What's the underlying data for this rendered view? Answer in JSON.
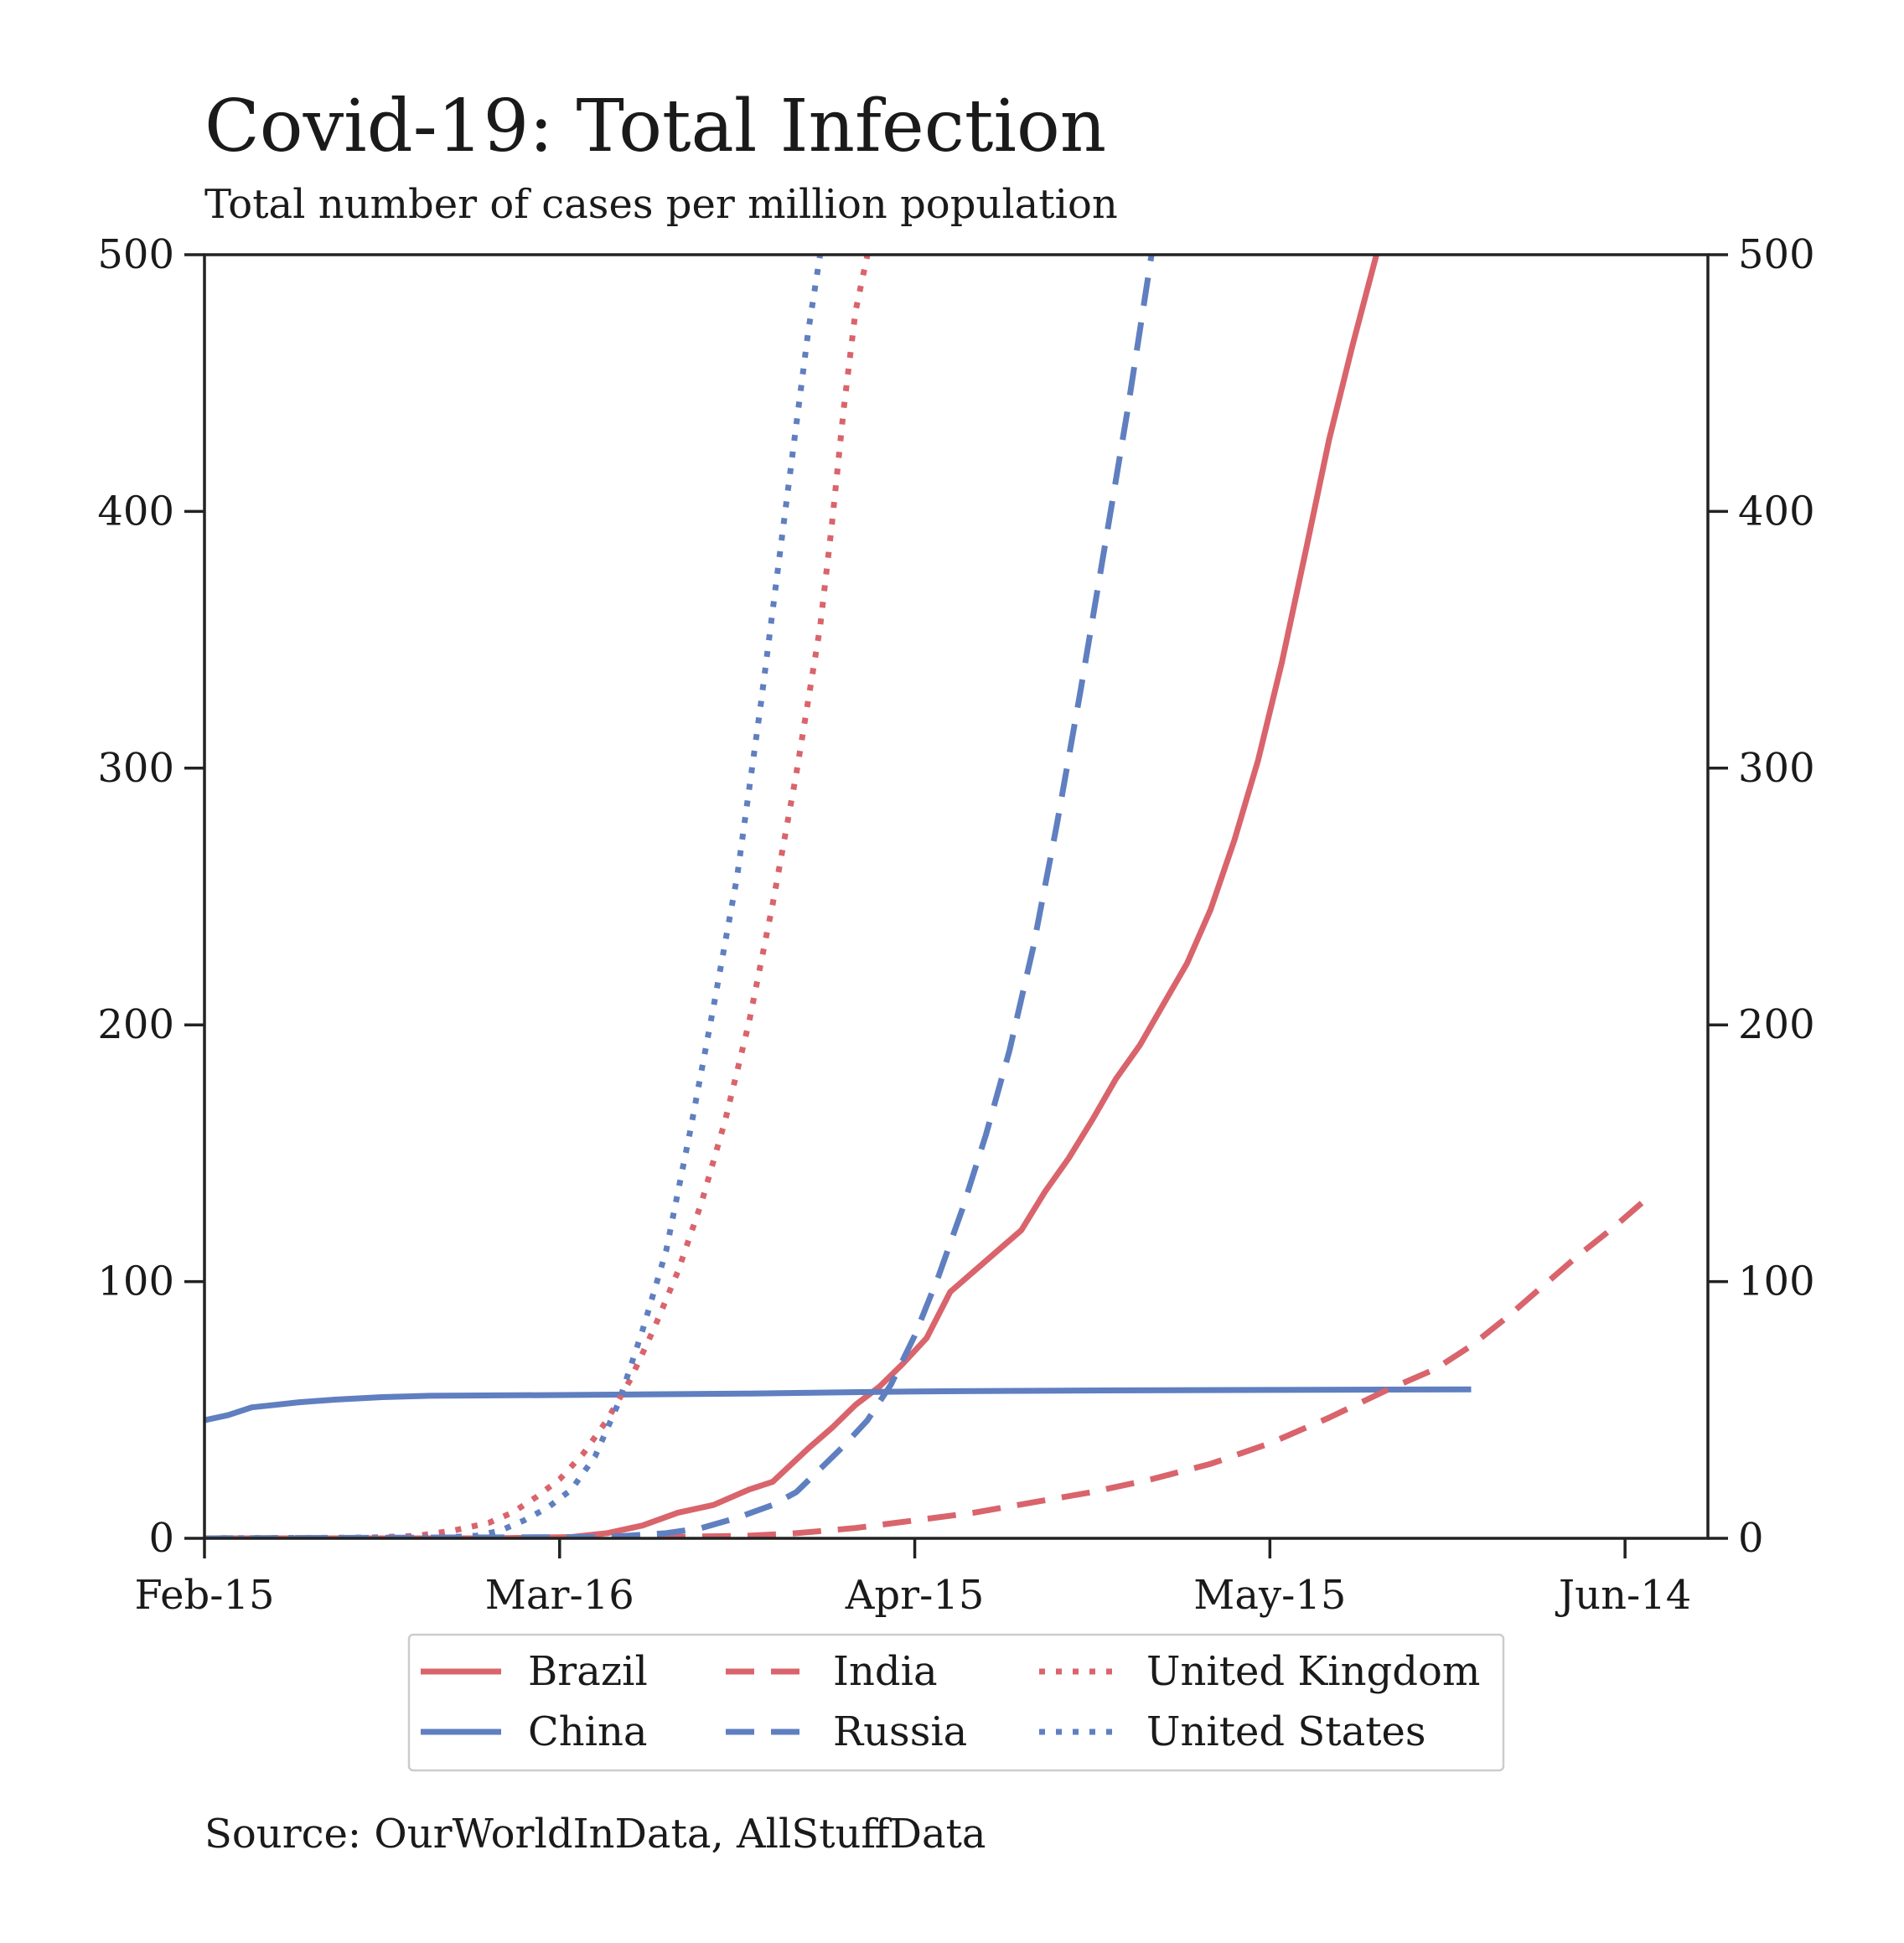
{
  "chart_data": {
    "type": "line",
    "title": "Covid-19: Total Infection",
    "subtitle": "Total number of cases per million population",
    "source": "Source: OurWorldInData, AllStuffData",
    "x_tick_labels": [
      "Feb-15",
      "Mar-16",
      "Apr-15",
      "May-15",
      "Jun-14"
    ],
    "x_tick_dates": [
      "2020-02-15",
      "2020-03-16",
      "2020-04-15",
      "2020-05-15",
      "2020-06-14"
    ],
    "xlim": [
      "2020-02-15",
      "2020-06-21"
    ],
    "ylim": [
      0,
      500
    ],
    "y_ticks": [
      0,
      100,
      200,
      300,
      400,
      500
    ],
    "y_tick_labels": [
      "0",
      "100",
      "200",
      "300",
      "400",
      "500"
    ],
    "secondary_y_axis": true,
    "grid": false,
    "legend_position": "bottom-center",
    "colors": {
      "red": "#d9646c",
      "blue": "#5f7fc0"
    },
    "series": [
      {
        "name": "Brazil",
        "color": "#d9646c",
        "dash": "solid",
        "points": [
          [
            "2020-02-15",
            0
          ],
          [
            "2020-03-10",
            0
          ],
          [
            "2020-03-17",
            0.5
          ],
          [
            "2020-03-20",
            2
          ],
          [
            "2020-03-23",
            5
          ],
          [
            "2020-03-26",
            10
          ],
          [
            "2020-03-29",
            13
          ],
          [
            "2020-04-01",
            19
          ],
          [
            "2020-04-03",
            22
          ],
          [
            "2020-04-06",
            35
          ],
          [
            "2020-04-08",
            43
          ],
          [
            "2020-04-10",
            52
          ],
          [
            "2020-04-12",
            59
          ],
          [
            "2020-04-14",
            68
          ],
          [
            "2020-04-16",
            78
          ],
          [
            "2020-04-18",
            96
          ],
          [
            "2020-04-20",
            104
          ],
          [
            "2020-04-22",
            112
          ],
          [
            "2020-04-24",
            120
          ],
          [
            "2020-04-26",
            135
          ],
          [
            "2020-04-28",
            148
          ],
          [
            "2020-04-30",
            163
          ],
          [
            "2020-05-02",
            179
          ],
          [
            "2020-05-04",
            192
          ],
          [
            "2020-05-06",
            208
          ],
          [
            "2020-05-08",
            224
          ],
          [
            "2020-05-10",
            245
          ],
          [
            "2020-05-12",
            272
          ],
          [
            "2020-05-14",
            303
          ],
          [
            "2020-05-16",
            341
          ],
          [
            "2020-05-18",
            384
          ],
          [
            "2020-05-20",
            428
          ],
          [
            "2020-05-22",
            465
          ],
          [
            "2020-05-24",
            500
          ]
        ]
      },
      {
        "name": "China",
        "color": "#5f7fc0",
        "dash": "solid",
        "points": [
          [
            "2020-02-15",
            46
          ],
          [
            "2020-02-17",
            48
          ],
          [
            "2020-02-19",
            51
          ],
          [
            "2020-02-21",
            52
          ],
          [
            "2020-02-23",
            53
          ],
          [
            "2020-02-26",
            54
          ],
          [
            "2020-03-01",
            55
          ],
          [
            "2020-03-05",
            55.5
          ],
          [
            "2020-03-16",
            55.8
          ],
          [
            "2020-04-01",
            56.4
          ],
          [
            "2020-04-15",
            57.2
          ],
          [
            "2020-05-01",
            57.6
          ],
          [
            "2020-05-15",
            57.8
          ],
          [
            "2020-06-01",
            58
          ]
        ]
      },
      {
        "name": "India",
        "color": "#d9646c",
        "dash": "dashed",
        "points": [
          [
            "2020-02-15",
            0
          ],
          [
            "2020-03-25",
            0.5
          ],
          [
            "2020-04-01",
            1
          ],
          [
            "2020-04-05",
            2
          ],
          [
            "2020-04-10",
            4
          ],
          [
            "2020-04-15",
            7
          ],
          [
            "2020-04-20",
            10
          ],
          [
            "2020-04-25",
            14
          ],
          [
            "2020-04-30",
            18
          ],
          [
            "2020-05-05",
            23
          ],
          [
            "2020-05-10",
            29
          ],
          [
            "2020-05-15",
            37
          ],
          [
            "2020-05-20",
            47
          ],
          [
            "2020-05-25",
            58
          ],
          [
            "2020-05-29",
            66
          ],
          [
            "2020-06-01",
            75
          ],
          [
            "2020-06-04",
            86
          ],
          [
            "2020-06-07",
            98
          ],
          [
            "2020-06-10",
            110
          ],
          [
            "2020-06-13",
            121
          ],
          [
            "2020-06-16",
            133
          ]
        ]
      },
      {
        "name": "Russia",
        "color": "#5f7fc0",
        "dash": "dashed",
        "points": [
          [
            "2020-02-15",
            0
          ],
          [
            "2020-03-20",
            0.5
          ],
          [
            "2020-03-25",
            2
          ],
          [
            "2020-03-28",
            4
          ],
          [
            "2020-03-31",
            8
          ],
          [
            "2020-04-03",
            13
          ],
          [
            "2020-04-05",
            18
          ],
          [
            "2020-04-07",
            27
          ],
          [
            "2020-04-09",
            36
          ],
          [
            "2020-04-11",
            46
          ],
          [
            "2020-04-13",
            60
          ],
          [
            "2020-04-15",
            79
          ],
          [
            "2020-04-17",
            102
          ],
          [
            "2020-04-19",
            128
          ],
          [
            "2020-04-21",
            157
          ],
          [
            "2020-04-23",
            190
          ],
          [
            "2020-04-25",
            230
          ],
          [
            "2020-04-27",
            278
          ],
          [
            "2020-04-29",
            330
          ],
          [
            "2020-05-01",
            385
          ],
          [
            "2020-05-03",
            440
          ],
          [
            "2020-05-05",
            500
          ]
        ]
      },
      {
        "name": "United Kingdom",
        "color": "#d9646c",
        "dash": "dotted",
        "points": [
          [
            "2020-02-15",
            0
          ],
          [
            "2020-02-29",
            0.3
          ],
          [
            "2020-03-04",
            1
          ],
          [
            "2020-03-07",
            3
          ],
          [
            "2020-03-10",
            6
          ],
          [
            "2020-03-12",
            10
          ],
          [
            "2020-03-14",
            16
          ],
          [
            "2020-03-16",
            23
          ],
          [
            "2020-03-18",
            33
          ],
          [
            "2020-03-20",
            46
          ],
          [
            "2020-03-22",
            62
          ],
          [
            "2020-03-24",
            82
          ],
          [
            "2020-03-26",
            104
          ],
          [
            "2020-03-28",
            131
          ],
          [
            "2020-03-30",
            163
          ],
          [
            "2020-04-01",
            201
          ],
          [
            "2020-04-03",
            247
          ],
          [
            "2020-04-05",
            298
          ],
          [
            "2020-04-07",
            355
          ],
          [
            "2020-04-08",
            395
          ],
          [
            "2020-04-09",
            440
          ],
          [
            "2020-04-10",
            478
          ],
          [
            "2020-04-11",
            500
          ]
        ]
      },
      {
        "name": "United States",
        "color": "#5f7fc0",
        "dash": "dotted",
        "points": [
          [
            "2020-02-15",
            0
          ],
          [
            "2020-03-06",
            0.3
          ],
          [
            "2020-03-09",
            1
          ],
          [
            "2020-03-11",
            3
          ],
          [
            "2020-03-13",
            7
          ],
          [
            "2020-03-15",
            12
          ],
          [
            "2020-03-17",
            19
          ],
          [
            "2020-03-19",
            32
          ],
          [
            "2020-03-21",
            53
          ],
          [
            "2020-03-23",
            81
          ],
          [
            "2020-03-25",
            112
          ],
          [
            "2020-03-27",
            158
          ],
          [
            "2020-03-29",
            207
          ],
          [
            "2020-03-31",
            258
          ],
          [
            "2020-04-02",
            325
          ],
          [
            "2020-04-04",
            398
          ],
          [
            "2020-04-06",
            470
          ],
          [
            "2020-04-07",
            500
          ]
        ]
      }
    ]
  }
}
